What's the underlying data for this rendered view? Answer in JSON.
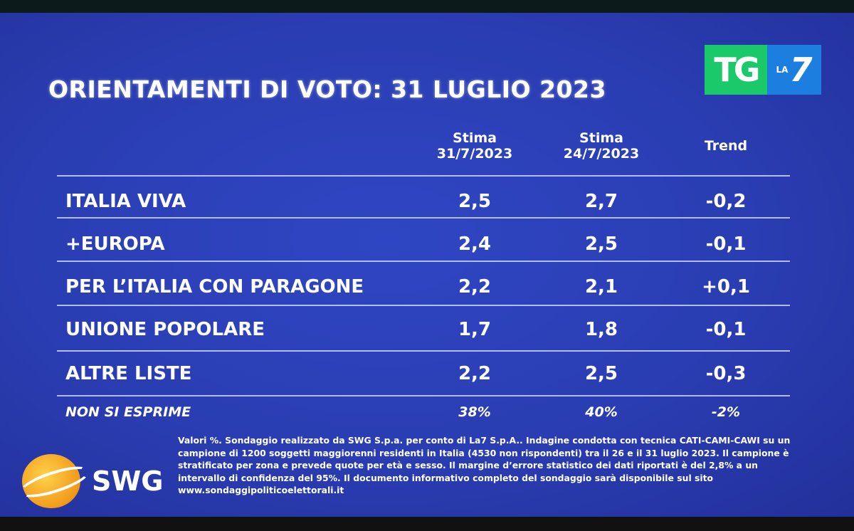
{
  "title": "ORIENTAMENTI DI VOTO: 31 LUGLIO 2023",
  "logo": {
    "tg": "TG",
    "la": "LA",
    "seven": "7"
  },
  "chart_data": {
    "type": "table",
    "title": "ORIENTAMENTI DI VOTO: 31 LUGLIO 2023",
    "columns": [
      {
        "line1": "Stima",
        "line2": "31/7/2023"
      },
      {
        "line1": "Stima",
        "line2": "24/7/2023"
      },
      {
        "line1": "Trend",
        "line2": ""
      }
    ],
    "rows": [
      {
        "label": "ITALIA VIVA",
        "current": "2,5",
        "previous": "2,7",
        "trend": "-0,2"
      },
      {
        "label": "+EUROPA",
        "current": "2,4",
        "previous": "2,5",
        "trend": "-0,1"
      },
      {
        "label": "PER L’ITALIA CON PARAGONE",
        "current": "2,2",
        "previous": "2,1",
        "trend": "+0,1"
      },
      {
        "label": "UNIONE POPOLARE",
        "current": "1,7",
        "previous": "1,8",
        "trend": "-0,1"
      },
      {
        "label": "ALTRE LISTE",
        "current": "2,2",
        "previous": "2,5",
        "trend": "-0,3"
      },
      {
        "label": "NON SI ESPRIME",
        "current": "38%",
        "previous": "40%",
        "trend": "-2%"
      }
    ]
  },
  "brand": "SWG",
  "footnote": {
    "text": "Valori %. Sondaggio realizzato da SWG S.p.a. per conto di La7 S.p.A.. Indagine condotta con tecnica CATI-CAMI-CAWI su un campione di 1200 soggetti maggiorenni residenti in Italia (4530 non rispondenti) tra il 26 e il 31 luglio 2023. Il campione è stratificato per zona e prevede quote per età e sesso. Il margine d’errore statistico dei dati riportati è del 2,8% a un intervallo di confidenza del 95%. Il documento informativo completo del sondaggio sarà disponibile sul sito",
    "url": "www.sondaggipoliticoelettorali.it"
  },
  "colors": {
    "background": "#2a3db2",
    "tg_green": "#19c96a",
    "la7_blue": "#1c7fe0",
    "swg_orange": "#f39a1a"
  }
}
